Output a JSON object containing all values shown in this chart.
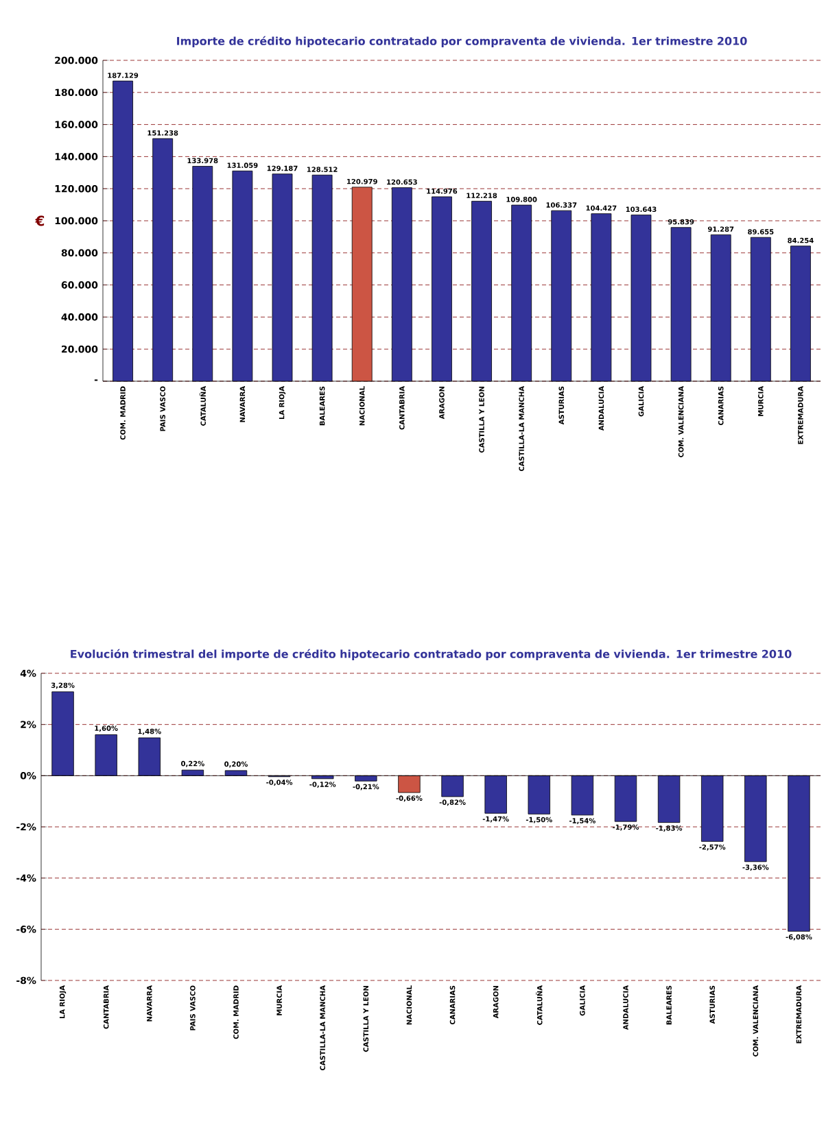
{
  "chart_data": [
    {
      "type": "bar",
      "title": "Importe de crédito hipotecario contratado por compraventa de vivienda. 1er trimestre 2010",
      "ylabel": "€",
      "categories": [
        "COM. MADRID",
        "PAIS VASCO",
        "CATALUÑA",
        "NAVARRA",
        "LA RIOJA",
        "BALEARES",
        "NACIONAL",
        "CANTABRIA",
        "ARAGON",
        "CASTILLA Y LEON",
        "CASTILLA-LA MANCHA",
        "ASTURIAS",
        "ANDALUCIA",
        "GALICIA",
        "COM. VALENCIANA",
        "CANARIAS",
        "MURCIA",
        "EXTREMADURA"
      ],
      "values": [
        187129,
        151238,
        133978,
        131059,
        129187,
        128512,
        120979,
        120653,
        114976,
        112218,
        109800,
        106337,
        104427,
        103643,
        95839,
        91287,
        89655,
        84254
      ],
      "value_labels": [
        "187.129",
        "151.238",
        "133.978",
        "131.059",
        "129.187",
        "128.512",
        "120.979",
        "120.653",
        "114.976",
        "112.218",
        "109.800",
        "106.337",
        "104.427",
        "103.643",
        "95.839",
        "91.287",
        "89.655",
        "84.254"
      ],
      "colors": [
        "#333399",
        "#333399",
        "#333399",
        "#333399",
        "#333399",
        "#333399",
        "#cc5544",
        "#333399",
        "#333399",
        "#333399",
        "#333399",
        "#333399",
        "#333399",
        "#333399",
        "#333399",
        "#333399",
        "#333399",
        "#333399"
      ],
      "ylim": [
        0,
        200000
      ],
      "yticks": [
        {
          "value": 0,
          "label": "-"
        },
        {
          "value": 20000,
          "label": "20.000"
        },
        {
          "value": 40000,
          "label": "40.000"
        },
        {
          "value": 60000,
          "label": "60.000"
        },
        {
          "value": 80000,
          "label": "80.000"
        },
        {
          "value": 100000,
          "label": "100.000"
        },
        {
          "value": 120000,
          "label": "120.000"
        },
        {
          "value": 140000,
          "label": "140.000"
        },
        {
          "value": 160000,
          "label": "160.000"
        },
        {
          "value": 180000,
          "label": "180.000"
        },
        {
          "value": 200000,
          "label": "200.000"
        }
      ],
      "grid": "y"
    },
    {
      "type": "bar",
      "title": "Evolución trimestral del importe de crédito hipotecario contratado por compraventa de vivienda. 1er trimestre 2010",
      "categories": [
        "LA RIOJA",
        "CANTABRIA",
        "NAVARRA",
        "PAIS VASCO",
        "COM. MADRID",
        "MURCIA",
        "CASTILLA-LA MANCHA",
        "CASTILLA Y LEON",
        "NACIONAL",
        "CANARIAS",
        "ARAGON",
        "CATALUÑA",
        "GALICIA",
        "ANDALUCIA",
        "BALEARES",
        "ASTURIAS",
        "COM. VALENCIANA",
        "EXTREMADURA"
      ],
      "values": [
        3.28,
        1.6,
        1.48,
        0.22,
        0.2,
        -0.04,
        -0.12,
        -0.21,
        -0.66,
        -0.82,
        -1.47,
        -1.5,
        -1.54,
        -1.79,
        -1.83,
        -2.57,
        -3.36,
        -6.08
      ],
      "value_labels": [
        "3,28%",
        "1,60%",
        "1,48%",
        "0,22%",
        "0,20%",
        "-0,04%",
        "-0,12%",
        "-0,21%",
        "-0,66%",
        "-0,82%",
        "-1,47%",
        "-1,50%",
        "-1,54%",
        "-1,79%",
        "-1,83%",
        "-2,57%",
        "-3,36%",
        "-6,08%"
      ],
      "colors": [
        "#333399",
        "#333399",
        "#333399",
        "#333399",
        "#333399",
        "#333399",
        "#333399",
        "#333399",
        "#cc5544",
        "#333399",
        "#333399",
        "#333399",
        "#333399",
        "#333399",
        "#333399",
        "#333399",
        "#333399",
        "#333399"
      ],
      "ylim": [
        -8,
        4
      ],
      "yticks": [
        {
          "value": -8,
          "label": "-8%"
        },
        {
          "value": -6,
          "label": "-6%"
        },
        {
          "value": -4,
          "label": "-4%"
        },
        {
          "value": -2,
          "label": "-2%"
        },
        {
          "value": 0,
          "label": "0%"
        },
        {
          "value": 2,
          "label": "2%"
        },
        {
          "value": 4,
          "label": "4%"
        }
      ],
      "grid": "y"
    }
  ]
}
